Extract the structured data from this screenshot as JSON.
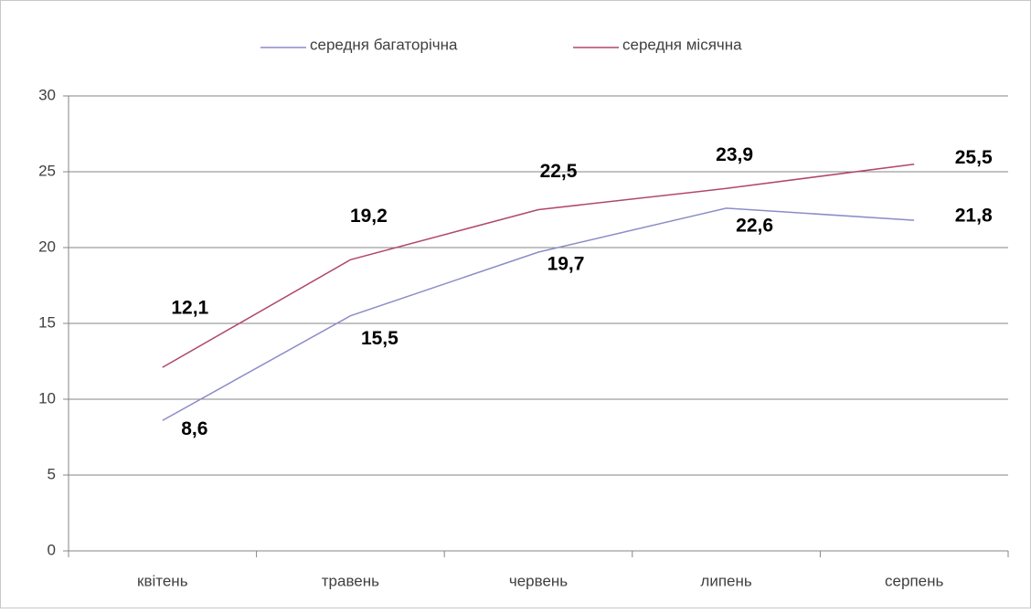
{
  "chart_data": {
    "type": "line",
    "categories": [
      "квітень",
      "травень",
      "червень",
      "липень",
      "серпень"
    ],
    "series": [
      {
        "name": "середня багаторічна",
        "color": "#8c8cc8",
        "values": [
          8.6,
          15.5,
          19.7,
          22.6,
          21.8
        ],
        "value_labels": [
          "8,6",
          "15,5",
          "19,7",
          "22,6",
          "21,8"
        ]
      },
      {
        "name": "середня місячна",
        "color": "#b04868",
        "values": [
          12.1,
          19.2,
          22.5,
          23.9,
          25.5
        ],
        "value_labels": [
          "12,1",
          "19,2",
          "22,5",
          "23,9",
          "25,5"
        ]
      }
    ],
    "ylim": [
      0,
      30
    ],
    "yticks": [
      0,
      5,
      10,
      15,
      20,
      25,
      30
    ],
    "grid": true,
    "legend": "top"
  }
}
